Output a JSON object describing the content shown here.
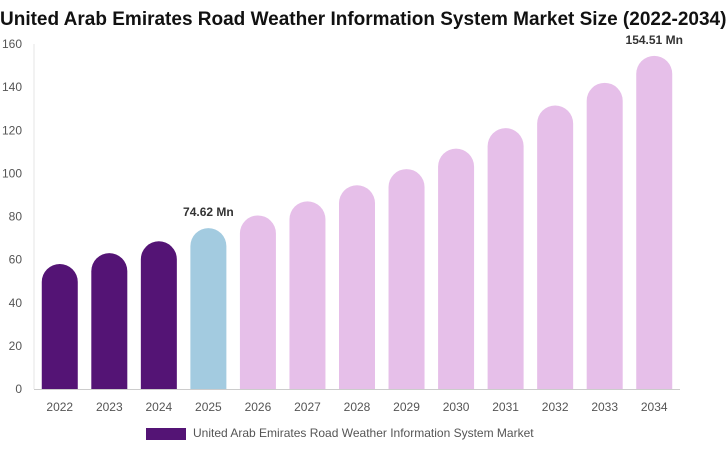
{
  "chart_data": {
    "type": "bar",
    "title": "United Arab Emirates Road Weather Information System Market Size (2022-2034)",
    "xlabel": "",
    "ylabel": "",
    "ylim": [
      0,
      160
    ],
    "yticks": [
      0,
      20,
      40,
      60,
      80,
      100,
      120,
      140,
      160
    ],
    "categories": [
      "2022",
      "2023",
      "2024",
      "2025",
      "2026",
      "2027",
      "2028",
      "2029",
      "2030",
      "2031",
      "2032",
      "2033",
      "2034"
    ],
    "series": [
      {
        "name": "United Arab Emirates Road Weather Information System Market",
        "values": [
          58,
          63,
          68.5,
          74.62,
          80.5,
          87,
          94.5,
          102,
          111.5,
          121,
          131.5,
          142,
          154.51
        ]
      }
    ],
    "bar_colors": [
      "#541475",
      "#541475",
      "#541475",
      "#a3cbe0",
      "#e6bfe9",
      "#e6bfe9",
      "#e6bfe9",
      "#e6bfe9",
      "#e6bfe9",
      "#e6bfe9",
      "#e6bfe9",
      "#e6bfe9",
      "#e6bfe9"
    ],
    "data_labels": [
      {
        "index": 3,
        "text": "74.62 Mn"
      },
      {
        "index": 12,
        "text": "154.51 Mn"
      }
    ],
    "legend": {
      "position": "bottom",
      "color": "#541475"
    },
    "grid": false
  }
}
